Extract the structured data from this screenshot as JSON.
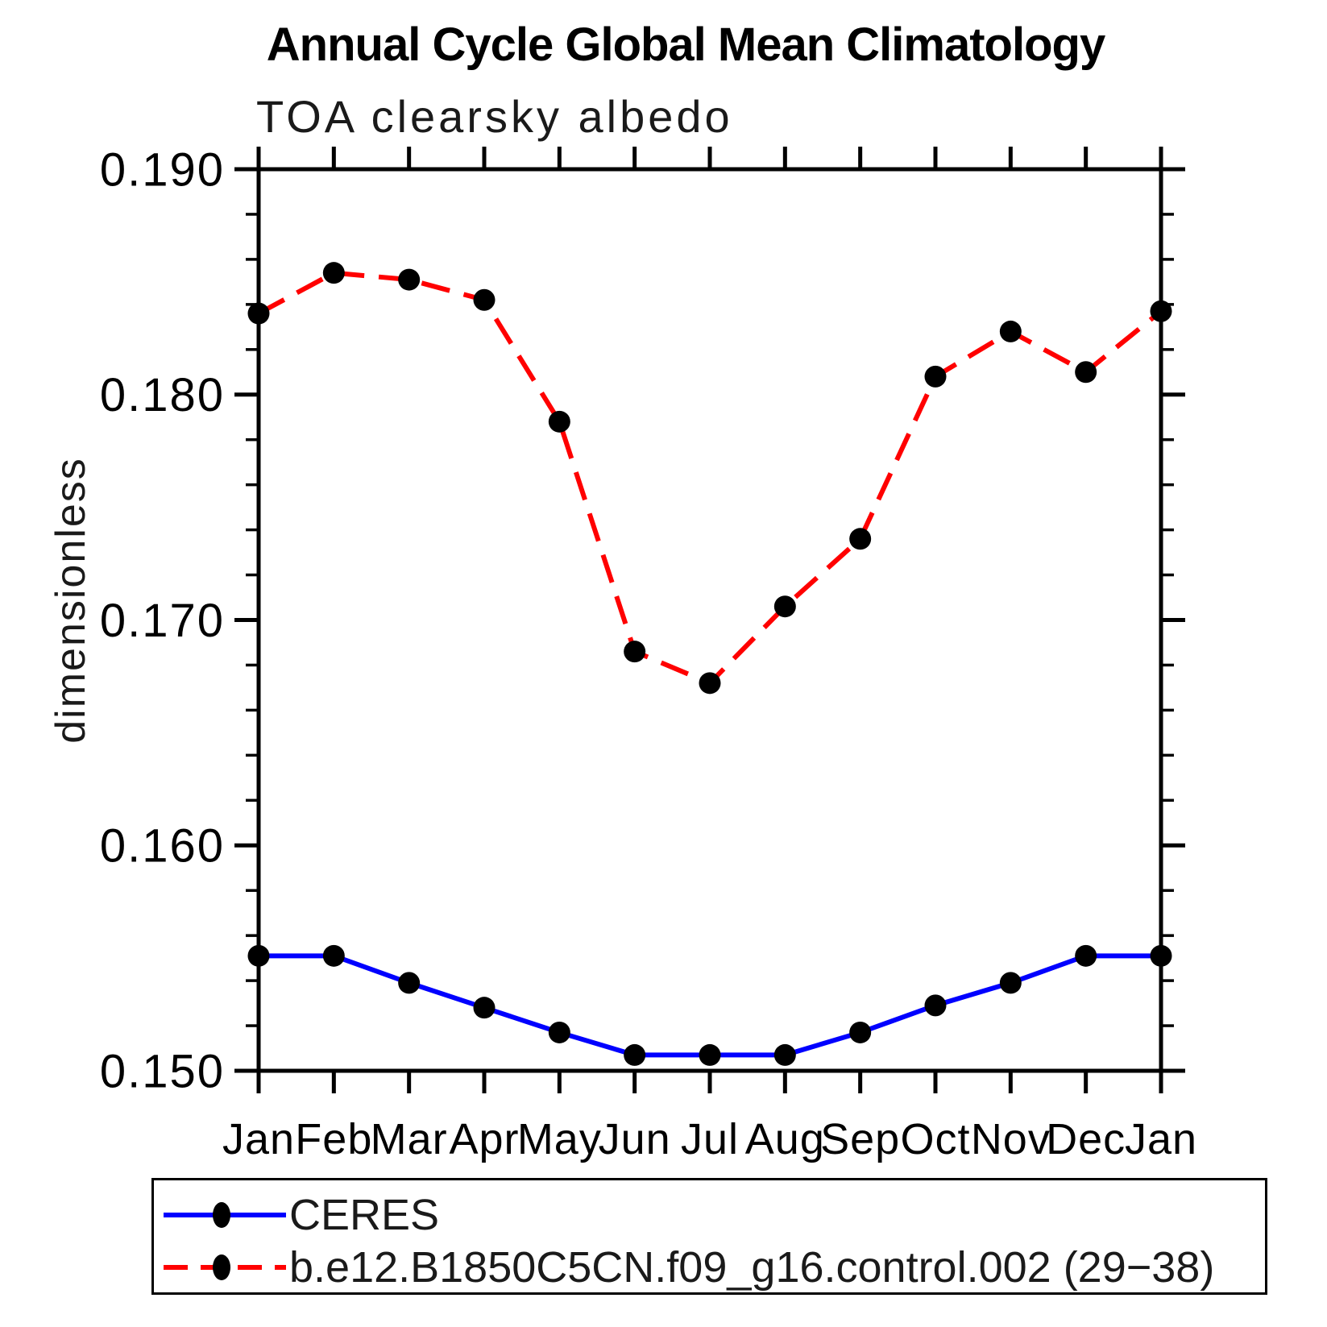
{
  "title": "Annual Cycle Global Mean Climatology",
  "subtitle": "TOA clearsky albedo",
  "ylabel": "dimensionless",
  "chart_data": {
    "type": "line",
    "categories": [
      "Jan",
      "Feb",
      "Mar",
      "Apr",
      "May",
      "Jun",
      "Jul",
      "Aug",
      "Sep",
      "Oct",
      "Nov",
      "Dec",
      "Jan"
    ],
    "series": [
      {
        "name": "CERES",
        "color": "#0000ff",
        "line_style": "solid",
        "values": [
          0.1551,
          0.1551,
          0.1539,
          0.1528,
          0.1517,
          0.1507,
          0.1507,
          0.1507,
          0.1517,
          0.1529,
          0.1539,
          0.1551,
          0.1551
        ]
      },
      {
        "name": "b.e12.B1850C5CN.f09_g16.control.002 (29−38)",
        "color": "#ff0000",
        "line_style": "dashed",
        "values": [
          0.1836,
          0.1854,
          0.1851,
          0.1842,
          0.1788,
          0.1686,
          0.1672,
          0.1706,
          0.1736,
          0.1808,
          0.1828,
          0.181,
          0.1837
        ]
      }
    ],
    "ylim": [
      0.15,
      0.19
    ],
    "yticks_major": [
      0.15,
      0.16,
      0.17,
      0.18,
      0.19
    ],
    "ytick_label_format": "3-decimals",
    "ytick_minor_step": 0.002,
    "marker": "filled-circle",
    "marker_color": "#000000",
    "grid": false,
    "legend_position": "bottom"
  }
}
